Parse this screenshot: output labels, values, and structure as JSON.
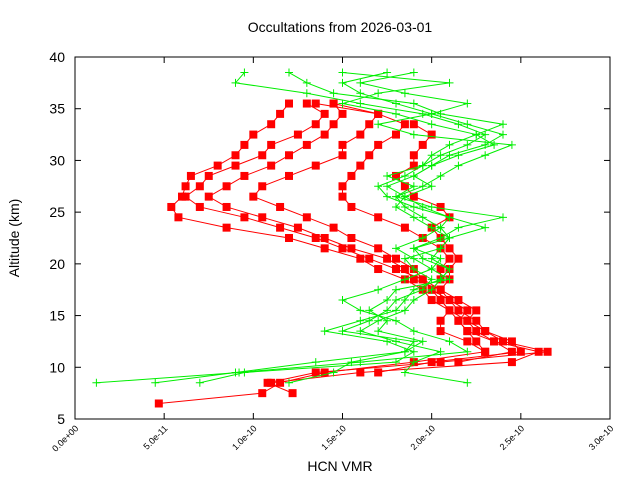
{
  "chart_data": {
    "type": "line",
    "title": "Occultations from 2026-03-01",
    "xlabel": "HCN VMR",
    "ylabel": "Altitude (km)",
    "xlim": [
      0,
      3e-10
    ],
    "ylim": [
      5,
      40
    ],
    "x_ticks": [
      "0.0e+00",
      "5.0e-11",
      "1.0e-10",
      "1.5e-10",
      "2.0e-10",
      "2.5e-10",
      "3.0e-10"
    ],
    "x_tick_values": [
      0,
      5e-11,
      1e-10,
      1.5e-10,
      2e-10,
      2.5e-10,
      3e-10
    ],
    "y_ticks": [
      "5",
      "10",
      "15",
      "20",
      "25",
      "30",
      "35",
      "40"
    ],
    "y_tick_values": [
      5,
      10,
      15,
      20,
      25,
      30,
      35,
      40
    ],
    "grid": false,
    "colors": {
      "red_series": "#ff0000",
      "green_series": "#00ee00"
    },
    "red_altitudes": [
      6.5,
      7.5,
      8.5,
      9.5,
      10.5,
      11.5,
      12.5,
      13.5,
      14.5,
      15.5,
      16.5,
      17.5,
      18.5,
      19.5,
      20.5,
      21.5,
      22.5,
      23.5,
      24.5,
      25.5,
      26.5,
      27.5,
      28.5,
      29.5,
      30.5,
      31.5,
      32.5,
      33.5,
      34.5,
      35.5
    ],
    "green_altitudes": [
      8.5,
      9.5,
      10.5,
      11.5,
      12.5,
      13.5,
      14.5,
      15.5,
      16.5,
      17.5,
      18.5,
      19.5,
      20.5,
      21.5,
      22.5,
      23.5,
      24.5,
      25.5,
      26.5,
      27.5,
      28.5,
      29.5,
      30.5,
      31.5,
      32.5,
      33.5,
      34.5,
      35.5,
      36.5,
      37.5,
      38.5
    ],
    "red_series": [
      {
        "marker": "square",
        "values": [
          4.7e-11,
          1.05e-10,
          1.15e-10,
          1.4e-10,
          1.9e-10,
          2.3e-10,
          2.2e-10,
          2.05e-10,
          2.05e-10,
          2.1e-10,
          2e-10,
          1.95e-10,
          1.85e-10,
          1.7e-10,
          1.6e-10,
          1.4e-10,
          1.2e-10,
          8.5e-11,
          5.8e-11,
          5.4e-11,
          6e-11,
          6.2e-11,
          6.5e-11,
          8e-11,
          9e-11,
          9.5e-11,
          1e-10,
          1.1e-10,
          1.15e-10,
          1.2e-10
        ]
      },
      {
        "marker": "square",
        "values": [
          null,
          1.22e-10,
          1.08e-10,
          1.35e-10,
          2.05e-10,
          2.65e-10,
          2.4e-10,
          2.3e-10,
          2.2e-10,
          2.25e-10,
          2.15e-10,
          2.05e-10,
          1.95e-10,
          1.8e-10,
          1.65e-10,
          1.5e-10,
          1.35e-10,
          1.15e-10,
          9.5e-11,
          7e-11,
          6.2e-11,
          7e-11,
          7.5e-11,
          9e-11,
          1.05e-10,
          1.1e-10,
          1.25e-10,
          1.35e-10,
          1.4e-10,
          1.3e-10
        ]
      },
      {
        "marker": "square",
        "values": [
          null,
          null,
          1.1e-10,
          1.6e-10,
          2.45e-10,
          2.6e-10,
          2.35e-10,
          2.2e-10,
          2.15e-10,
          2.2e-10,
          2.1e-10,
          2.05e-10,
          1.9e-10,
          1.85e-10,
          1.75e-10,
          1.55e-10,
          1.4e-10,
          1.25e-10,
          1.05e-10,
          8.5e-11,
          7.5e-11,
          8.5e-11,
          9.5e-11,
          1.1e-10,
          1.2e-10,
          1.3e-10,
          1.4e-10,
          1.45e-10,
          1.5e-10,
          1.45e-10
        ]
      },
      {
        "marker": "square",
        "values": [
          null,
          null,
          null,
          1.7e-10,
          2e-10,
          2.5e-10,
          2.45e-10,
          2.3e-10,
          2.25e-10,
          2.15e-10,
          2.1e-10,
          2e-10,
          1.95e-10,
          1.9e-10,
          1.8e-10,
          1.7e-10,
          1.55e-10,
          1.45e-10,
          1.3e-10,
          1.15e-10,
          1e-10,
          1.05e-10,
          1.2e-10,
          1.35e-10,
          1.5e-10,
          1.5e-10,
          1.6e-10,
          1.65e-10,
          1.7e-10,
          1.35e-10
        ]
      },
      {
        "marker": "square",
        "values": [
          null,
          null,
          null,
          null,
          2.15e-10,
          2.45e-10,
          2.35e-10,
          2.25e-10,
          2.2e-10,
          2.1e-10,
          2.05e-10,
          2e-10,
          2.05e-10,
          2.05e-10,
          2.1e-10,
          2.05e-10,
          1.95e-10,
          1.85e-10,
          1.7e-10,
          1.55e-10,
          1.5e-10,
          1.5e-10,
          1.55e-10,
          1.6e-10,
          1.65e-10,
          1.7e-10,
          1.8e-10,
          1.85e-10,
          1.7e-10,
          1.45e-10
        ]
      },
      {
        "marker": "square",
        "values": [
          null,
          null,
          null,
          null,
          null,
          2.3e-10,
          2.25e-10,
          2.2e-10,
          2.15e-10,
          2.1e-10,
          2.05e-10,
          2.05e-10,
          2.1e-10,
          2.1e-10,
          2.15e-10,
          2.1e-10,
          2.05e-10,
          2e-10,
          2.1e-10,
          2.05e-10,
          1.9e-10,
          1.85e-10,
          1.8e-10,
          1.9e-10,
          1.9e-10,
          1.95e-10,
          2e-10,
          1.9e-10,
          null,
          null
        ]
      }
    ],
    "green_series": [
      {
        "marker": "plus",
        "values": [
          1.2e-11,
          9.2e-11,
          1.6e-10,
          2.2e-10,
          2.1e-10,
          1.9e-10,
          1.8e-10,
          1.6e-10,
          1.5e-10,
          1.7e-10,
          1.85e-10,
          2e-10,
          2.05e-10,
          1.9e-10,
          2.1e-10,
          2.3e-10,
          2.1e-10,
          1.95e-10,
          1.85e-10,
          2e-10,
          1.9e-10,
          2e-10,
          2.1e-10,
          2.3e-10,
          2.4e-10,
          2.2e-10,
          2e-10,
          1.8e-10,
          1.6e-10,
          1.5e-10,
          1.75e-10
        ]
      },
      {
        "marker": "plus",
        "values": [
          4.5e-11,
          9e-11,
          1.35e-10,
          1.85e-10,
          1.9e-10,
          1.5e-10,
          1.65e-10,
          1.75e-10,
          1.8e-10,
          1.95e-10,
          2e-10,
          1.9e-10,
          1.85e-10,
          2.05e-10,
          2.1e-10,
          2e-10,
          1.9e-10,
          1.8e-10,
          1.85e-10,
          1.75e-10,
          1.9e-10,
          2e-10,
          2.15e-10,
          2.35e-10,
          2.25e-10,
          2.4e-10,
          2.05e-10,
          1.9e-10,
          1.45e-10,
          1.3e-10,
          1.2e-10
        ]
      },
      {
        "marker": "plus",
        "values": [
          7e-11,
          9.5e-11,
          1.8e-10,
          1.9e-10,
          1.75e-10,
          1.4e-10,
          1.6e-10,
          1.8e-10,
          1.85e-10,
          1.9e-10,
          2.05e-10,
          2.1e-10,
          1.95e-10,
          1.9e-10,
          2.05e-10,
          2.15e-10,
          2.4e-10,
          2e-10,
          1.8e-10,
          1.9e-10,
          1.75e-10,
          1.95e-10,
          2.05e-10,
          2.2e-10,
          2.3e-10,
          2.15e-10,
          1.95e-10,
          1.6e-10,
          1.3e-10,
          9e-11,
          9.5e-11
        ]
      },
      {
        "marker": "plus",
        "values": [
          1.2e-10,
          1.45e-10,
          1.55e-10,
          1.85e-10,
          1.95e-10,
          1.7e-10,
          1.75e-10,
          1.65e-10,
          1.75e-10,
          1.8e-10,
          2.1e-10,
          2e-10,
          1.9e-10,
          1.8e-10,
          1.95e-10,
          2.05e-10,
          2.1e-10,
          1.9e-10,
          1.75e-10,
          1.7e-10,
          1.85e-10,
          1.95e-10,
          2e-10,
          2.1e-10,
          2.25e-10,
          2e-10,
          1.8e-10,
          1.5e-10,
          1.7e-10,
          2.1e-10,
          1.5e-10
        ]
      },
      {
        "marker": "plus",
        "values": [
          2.2e-10,
          1.85e-10,
          1.9e-10,
          2.05e-10,
          1.8e-10,
          1.6e-10,
          1.7e-10,
          1.85e-10,
          1.9e-10,
          2e-10,
          2.05e-10,
          2.1e-10,
          2e-10,
          2.05e-10,
          2.1e-10,
          2.05e-10,
          1.95e-10,
          1.85e-10,
          1.8e-10,
          1.95e-10,
          2.05e-10,
          2.15e-10,
          2.3e-10,
          2.45e-10,
          1.9e-10,
          1.7e-10,
          2e-10,
          2.2e-10,
          1.85e-10,
          1.6e-10,
          1.9e-10
        ]
      }
    ]
  }
}
